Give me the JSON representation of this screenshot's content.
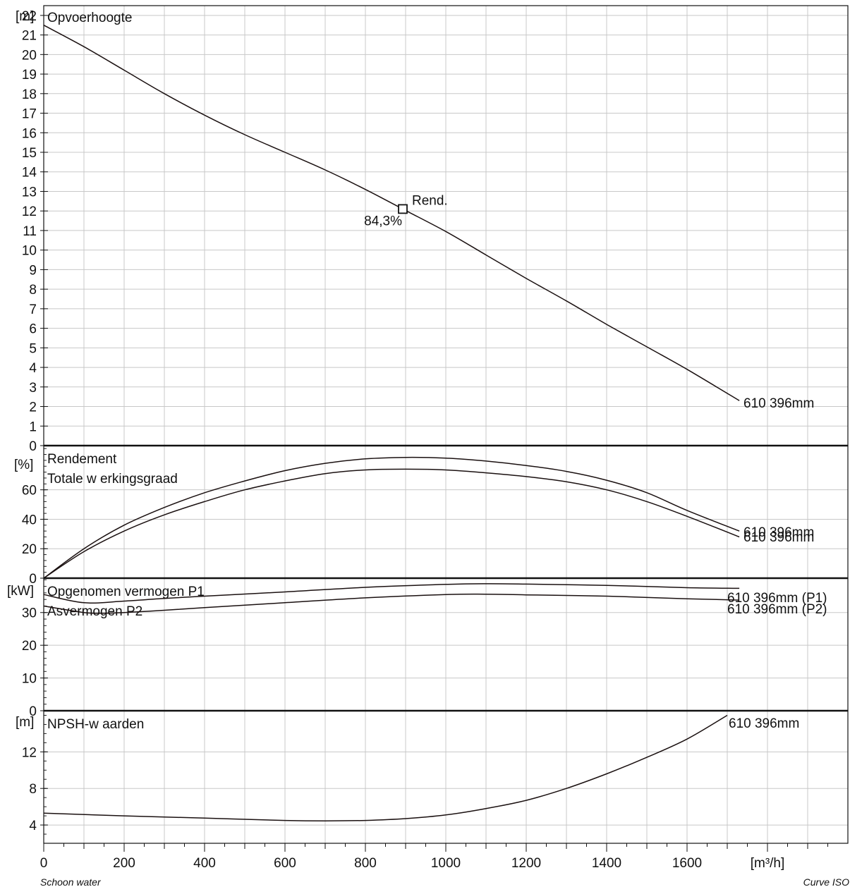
{
  "footer": {
    "left": "Schoon water",
    "right": "Curve ISO"
  },
  "x_axis": {
    "unit": "[m³/h]",
    "ticks": [
      0,
      200,
      400,
      600,
      800,
      1000,
      1200,
      1400,
      1600
    ],
    "xlim": [
      0,
      2000
    ]
  },
  "chart_data": [
    {
      "type": "line",
      "id": "head",
      "title": "Opvoerhoogte",
      "ylabel": "[m]",
      "ylim": [
        0,
        22.5
      ],
      "yticks": [
        0,
        1,
        2,
        3,
        4,
        5,
        6,
        7,
        8,
        9,
        10,
        11,
        12,
        13,
        14,
        15,
        16,
        17,
        18,
        19,
        20,
        21,
        22
      ],
      "grid": true,
      "series": [
        {
          "name": "610 396mm",
          "x": [
            0,
            100,
            200,
            300,
            400,
            500,
            600,
            700,
            800,
            893,
            1000,
            1100,
            1200,
            1300,
            1400,
            1500,
            1600,
            1730
          ],
          "y": [
            21.5,
            20.4,
            19.2,
            18.0,
            16.9,
            15.9,
            15.0,
            14.1,
            13.1,
            12.1,
            10.95,
            9.75,
            8.55,
            7.4,
            6.2,
            5.05,
            3.9,
            2.3
          ]
        }
      ],
      "annotation": {
        "x": 893,
        "y": 12.1,
        "label": "Rend.",
        "value": "84,3%"
      }
    },
    {
      "type": "line",
      "id": "efficiency",
      "title": "Rendement",
      "subtitle": "Totale w erkingsgraad",
      "ylabel": "[%]",
      "ylim": [
        0,
        90
      ],
      "yticks": [
        0,
        20,
        40,
        60
      ],
      "grid": true,
      "series": [
        {
          "name": "610 396mm",
          "x": [
            0,
            100,
            200,
            300,
            400,
            500,
            600,
            700,
            800,
            900,
            1000,
            1100,
            1200,
            1300,
            1400,
            1500,
            1600,
            1730
          ],
          "y": [
            0,
            20,
            36,
            48,
            58,
            66,
            73,
            78,
            81,
            82,
            81.5,
            79.5,
            76.5,
            72.5,
            66.5,
            58,
            46,
            32
          ]
        },
        {
          "name": "610 396mm",
          "x": [
            0,
            100,
            200,
            300,
            400,
            500,
            600,
            700,
            800,
            900,
            1000,
            1100,
            1200,
            1300,
            1400,
            1500,
            1600,
            1730
          ],
          "y": [
            0,
            18,
            32,
            43,
            52,
            60,
            66,
            71,
            73.5,
            74,
            73.5,
            71.5,
            69,
            65.5,
            60,
            52,
            42,
            28
          ]
        }
      ]
    },
    {
      "type": "line",
      "id": "power",
      "title": "Opgenomen vermogen P1",
      "subtitle": "Asvermogen P2",
      "ylabel": "[kW]",
      "ylim": [
        0,
        40.5
      ],
      "yticks": [
        0,
        10,
        20,
        30
      ],
      "grid": true,
      "series": [
        {
          "name": "610 396mm (P1)",
          "x": [
            0,
            100,
            200,
            300,
            400,
            600,
            800,
            1000,
            1100,
            1200,
            1400,
            1600,
            1730
          ],
          "y": [
            35.5,
            33.0,
            33.5,
            34.3,
            35.0,
            36.3,
            37.7,
            38.6,
            38.8,
            38.7,
            38.3,
            37.6,
            37.4
          ]
        },
        {
          "name": "610 396mm (P2)",
          "x": [
            0,
            100,
            150,
            200,
            300,
            400,
            600,
            800,
            1000,
            1100,
            1200,
            1400,
            1600,
            1730
          ],
          "y": [
            32.0,
            30.0,
            29.8,
            30.0,
            30.7,
            31.5,
            33.0,
            34.5,
            35.5,
            35.6,
            35.4,
            35.0,
            34.2,
            33.8
          ]
        }
      ]
    },
    {
      "type": "line",
      "id": "npsh",
      "title": "NPSH-w aarden",
      "ylabel": "[m]",
      "ylim": [
        2,
        16.5
      ],
      "yticks": [
        4,
        8,
        12
      ],
      "grid": true,
      "series": [
        {
          "name": "610 396mm",
          "x": [
            0,
            200,
            400,
            600,
            700,
            800,
            900,
            1000,
            1100,
            1200,
            1300,
            1400,
            1500,
            1600,
            1700
          ],
          "y": [
            5.3,
            5.0,
            4.75,
            4.5,
            4.45,
            4.5,
            4.7,
            5.1,
            5.8,
            6.7,
            8.0,
            9.6,
            11.4,
            13.4,
            16.0
          ]
        }
      ]
    }
  ]
}
